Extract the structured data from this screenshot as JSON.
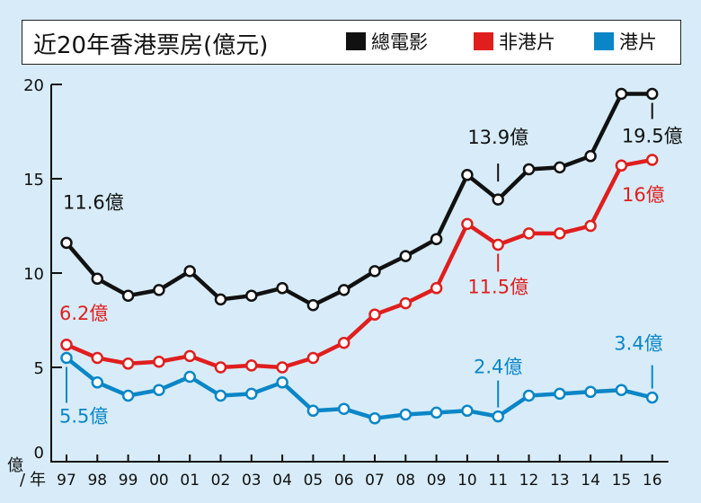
{
  "title": "近20年香港票房(億元)",
  "legend": [
    {
      "label": "總電影",
      "color": "#111111"
    },
    {
      "label": "非港片",
      "color": "#e01e1e"
    },
    {
      "label": "港片",
      "color": "#0a86c7"
    }
  ],
  "y_unit": "億",
  "x_unit": "年",
  "chart_data": {
    "type": "line",
    "title": "近20年香港票房(億元)",
    "categories": [
      "97",
      "98",
      "99",
      "00",
      "01",
      "02",
      "03",
      "04",
      "05",
      "06",
      "07",
      "08",
      "09",
      "10",
      "11",
      "12",
      "13",
      "14",
      "15",
      "16"
    ],
    "ylim": [
      0,
      20
    ],
    "yticks": [
      "0",
      "5",
      "10",
      "15",
      "20"
    ],
    "grid": false,
    "legend_position": "top",
    "series": [
      {
        "name": "總電影",
        "color": "#111111",
        "values": [
          11.6,
          9.7,
          8.8,
          9.1,
          10.1,
          8.6,
          8.8,
          9.2,
          8.3,
          9.1,
          10.1,
          10.9,
          11.8,
          15.2,
          13.9,
          15.5,
          15.6,
          16.2,
          19.5,
          19.5
        ]
      },
      {
        "name": "非港片",
        "color": "#e01e1e",
        "values": [
          6.2,
          5.5,
          5.2,
          5.3,
          5.6,
          5.0,
          5.1,
          5.0,
          5.5,
          6.3,
          7.8,
          8.4,
          9.2,
          12.6,
          11.5,
          12.1,
          12.1,
          12.5,
          15.7,
          16.0
        ]
      },
      {
        "name": "港片",
        "color": "#0a86c7",
        "values": [
          5.5,
          4.2,
          3.5,
          3.8,
          4.5,
          3.5,
          3.6,
          4.2,
          2.7,
          2.8,
          2.3,
          2.5,
          2.6,
          2.7,
          2.4,
          3.5,
          3.6,
          3.7,
          3.8,
          3.4
        ]
      }
    ],
    "annotations": [
      {
        "text": "11.6億",
        "series": 0,
        "index": 0,
        "color": "#111111"
      },
      {
        "text": "13.9億",
        "series": 0,
        "index": 14,
        "color": "#111111"
      },
      {
        "text": "19.5億",
        "series": 0,
        "index": 19,
        "color": "#111111"
      },
      {
        "text": "6.2億",
        "series": 1,
        "index": 0,
        "color": "#e01e1e"
      },
      {
        "text": "11.5億",
        "series": 1,
        "index": 14,
        "color": "#e01e1e"
      },
      {
        "text": "16億",
        "series": 1,
        "index": 19,
        "color": "#e01e1e"
      },
      {
        "text": "5.5億",
        "series": 2,
        "index": 0,
        "color": "#0a86c7"
      },
      {
        "text": "2.4億",
        "series": 2,
        "index": 14,
        "color": "#0a86c7"
      },
      {
        "text": "3.4億",
        "series": 2,
        "index": 19,
        "color": "#0a86c7"
      }
    ]
  }
}
